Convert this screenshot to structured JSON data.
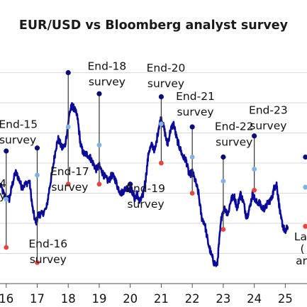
{
  "chart_data": {
    "type": "line",
    "title": "EUR/USD vs Bloomberg analyst survey",
    "xlabel": "",
    "ylabel": "",
    "x_ticks": [
      "16",
      "17",
      "18",
      "19",
      "20",
      "21",
      "22",
      "23",
      "24",
      "25"
    ],
    "xlim": [
      2015.8,
      2025.7
    ],
    "ylim": [
      0.95,
      1.35
    ],
    "grid": true,
    "legend": "none",
    "colors": {
      "line": "#0a0a9a",
      "survey_stem": "#333333",
      "median_marker": "#0a0a7a",
      "min_marker": "#e8453c",
      "max_marker": "#7fb2e5",
      "grid": "#d9d9d9"
    },
    "series": [
      {
        "points": [
          [
            2015.8,
            1.115
          ],
          [
            2015.95,
            1.095
          ],
          [
            2016.1,
            1.09
          ],
          [
            2016.2,
            1.115
          ],
          [
            2016.3,
            1.135
          ],
          [
            2016.4,
            1.125
          ],
          [
            2016.5,
            1.11
          ],
          [
            2016.62,
            1.115
          ],
          [
            2016.75,
            1.12
          ],
          [
            2016.85,
            1.075
          ],
          [
            2016.95,
            1.05
          ],
          [
            2017.05,
            1.065
          ],
          [
            2017.15,
            1.065
          ],
          [
            2017.3,
            1.075
          ],
          [
            2017.4,
            1.11
          ],
          [
            2017.5,
            1.14
          ],
          [
            2017.6,
            1.175
          ],
          [
            2017.68,
            1.19
          ],
          [
            2017.8,
            1.175
          ],
          [
            2017.9,
            1.18
          ],
          [
            2018.05,
            1.235
          ],
          [
            2018.12,
            1.245
          ],
          [
            2018.2,
            1.24
          ],
          [
            2018.3,
            1.225
          ],
          [
            2018.4,
            1.18
          ],
          [
            2018.5,
            1.165
          ],
          [
            2018.6,
            1.165
          ],
          [
            2018.7,
            1.16
          ],
          [
            2018.8,
            1.15
          ],
          [
            2018.9,
            1.14
          ],
          [
            2019.0,
            1.145
          ],
          [
            2019.1,
            1.135
          ],
          [
            2019.2,
            1.125
          ],
          [
            2019.3,
            1.12
          ],
          [
            2019.4,
            1.13
          ],
          [
            2019.5,
            1.125
          ],
          [
            2019.6,
            1.11
          ],
          [
            2019.7,
            1.1
          ],
          [
            2019.8,
            1.105
          ],
          [
            2019.92,
            1.11
          ],
          [
            2020.05,
            1.105
          ],
          [
            2020.15,
            1.09
          ],
          [
            2020.22,
            1.1
          ],
          [
            2020.3,
            1.085
          ],
          [
            2020.4,
            1.095
          ],
          [
            2020.5,
            1.125
          ],
          [
            2020.6,
            1.17
          ],
          [
            2020.7,
            1.18
          ],
          [
            2020.8,
            1.17
          ],
          [
            2020.92,
            1.21
          ],
          [
            2021.0,
            1.225
          ],
          [
            2021.1,
            1.205
          ],
          [
            2021.2,
            1.18
          ],
          [
            2021.3,
            1.205
          ],
          [
            2021.4,
            1.215
          ],
          [
            2021.5,
            1.19
          ],
          [
            2021.6,
            1.175
          ],
          [
            2021.7,
            1.16
          ],
          [
            2021.8,
            1.155
          ],
          [
            2021.9,
            1.13
          ],
          [
            2022.0,
            1.135
          ],
          [
            2022.1,
            1.12
          ],
          [
            2022.2,
            1.1
          ],
          [
            2022.3,
            1.06
          ],
          [
            2022.4,
            1.05
          ],
          [
            2022.5,
            1.02
          ],
          [
            2022.6,
            1.0
          ],
          [
            2022.7,
            0.985
          ],
          [
            2022.8,
            0.98
          ],
          [
            2022.87,
            1.02
          ],
          [
            2022.95,
            1.065
          ],
          [
            2023.05,
            1.075
          ],
          [
            2023.15,
            1.065
          ],
          [
            2023.25,
            1.09
          ],
          [
            2023.35,
            1.095
          ],
          [
            2023.45,
            1.075
          ],
          [
            2023.55,
            1.1
          ],
          [
            2023.65,
            1.085
          ],
          [
            2023.75,
            1.06
          ],
          [
            2023.85,
            1.075
          ],
          [
            2023.95,
            1.1
          ],
          [
            2024.05,
            1.085
          ],
          [
            2024.15,
            1.085
          ],
          [
            2024.25,
            1.075
          ],
          [
            2024.35,
            1.075
          ],
          [
            2024.45,
            1.085
          ],
          [
            2024.55,
            1.09
          ],
          [
            2024.65,
            1.11
          ],
          [
            2024.72,
            1.115
          ],
          [
            2024.78,
            1.09
          ],
          [
            2024.85,
            1.06
          ],
          [
            2024.93,
            1.045
          ],
          [
            2025.0,
            1.035
          ],
          [
            2025.08,
            1.045
          ]
        ]
      }
    ],
    "surveys": [
      {
        "label_line1": "End-15",
        "label_line2": "survey",
        "x": 2016.0,
        "min": 1.01,
        "median": 1.17,
        "max": 1.09,
        "label_x": 2015.78,
        "label_y": 1.208
      },
      {
        "label_line1": "End-16",
        "label_line2": "survey",
        "x": 2017.0,
        "min": 0.985,
        "median": 1.175,
        "max": 1.13,
        "label_x": 2017.35,
        "label_y": 1.01
      },
      {
        "label_line1": "End-17",
        "label_line2": "survey",
        "x": 2018.0,
        "min": 1.115,
        "median": 1.3,
        "max": 1.21,
        "label_x": 2018.05,
        "label_y": 1.13
      },
      {
        "label_line1": "End-18",
        "label_line2": "survey",
        "x": 2019.0,
        "min": 1.115,
        "median": 1.265,
        "max": 1.18,
        "label_x": 2019.25,
        "label_y": 1.305
      },
      {
        "label_line1": "End-19",
        "label_line2": "survey",
        "x": 2020.0,
        "min": 1.115,
        "median": 1.115,
        "max": 1.115,
        "label_x": 2020.5,
        "label_y": 1.102
      },
      {
        "label_line1": "End-20",
        "label_line2": "survey",
        "x": 2021.0,
        "min": 1.15,
        "median": 1.26,
        "max": 1.215,
        "label_x": 2021.15,
        "label_y": 1.302
      },
      {
        "label_line1": "End-21",
        "label_line2": "survey",
        "x": 2022.0,
        "min": 1.1,
        "median": 1.21,
        "max": 1.16,
        "label_x": 2022.1,
        "label_y": 1.255
      },
      {
        "label_line1": "End-22",
        "label_line2": "survey",
        "x": 2023.0,
        "min": 1.04,
        "median": 1.16,
        "max": 1.12,
        "label_x": 2023.35,
        "label_y": 1.205
      },
      {
        "label_line1": "End-23",
        "label_line2": "survey",
        "x": 2024.0,
        "min": 1.105,
        "median": 1.195,
        "max": 1.14,
        "label_x": 2024.45,
        "label_y": 1.232
      }
    ],
    "edge_markers": [
      {
        "x": 2025.65,
        "y": 1.16,
        "kind": "median"
      },
      {
        "x": 2025.65,
        "y": 1.11,
        "kind": "max"
      },
      {
        "x": 2025.65,
        "y": 1.045,
        "kind": "min"
      }
    ],
    "cropped_text": [
      {
        "text": "4",
        "x": 2015.78,
        "y": 1.11,
        "anchor": "start"
      },
      {
        "text": "y",
        "x": 2015.78,
        "y": 1.09,
        "anchor": "start"
      },
      {
        "text": "La",
        "x": 2025.7,
        "y": 1.022,
        "anchor": "end"
      },
      {
        "text": "(",
        "x": 2025.62,
        "y": 1.002,
        "anchor": "end"
      },
      {
        "text": "ar",
        "x": 2025.7,
        "y": 0.982,
        "anchor": "end"
      }
    ]
  }
}
